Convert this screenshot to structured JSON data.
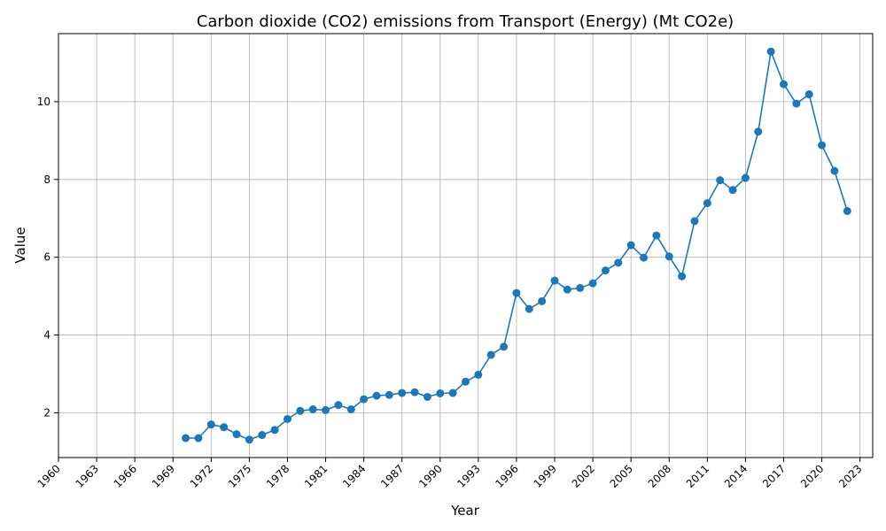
{
  "chart_data": {
    "type": "line",
    "title": "Carbon dioxide (CO2) emissions from Transport (Energy) (Mt CO2e)",
    "xlabel": "Year",
    "ylabel": "Value",
    "xlim": [
      1960,
      2024
    ],
    "ylim": [
      0.85,
      11.75
    ],
    "grid": true,
    "color": "#1f77b4",
    "x_ticks": [
      1960,
      1963,
      1966,
      1969,
      1972,
      1975,
      1978,
      1981,
      1984,
      1987,
      1990,
      1993,
      1996,
      1999,
      2002,
      2005,
      2008,
      2011,
      2014,
      2017,
      2020,
      2023
    ],
    "y_ticks": [
      2,
      4,
      6,
      8,
      10
    ],
    "x": [
      1970,
      1971,
      1972,
      1973,
      1974,
      1975,
      1976,
      1977,
      1978,
      1979,
      1980,
      1981,
      1982,
      1983,
      1984,
      1985,
      1986,
      1987,
      1988,
      1989,
      1990,
      1991,
      1992,
      1993,
      1994,
      1995,
      1996,
      1997,
      1998,
      1999,
      2000,
      2001,
      2002,
      2003,
      2004,
      2005,
      2006,
      2007,
      2008,
      2009,
      2010,
      2011,
      2012,
      2013,
      2014,
      2015,
      2016,
      2017,
      2018,
      2019,
      2020,
      2021,
      2022
    ],
    "y": [
      1.35,
      1.35,
      1.7,
      1.63,
      1.45,
      1.31,
      1.43,
      1.56,
      1.84,
      2.05,
      2.09,
      2.07,
      2.2,
      2.09,
      2.35,
      2.44,
      2.46,
      2.51,
      2.53,
      2.41,
      2.5,
      2.51,
      2.8,
      2.98,
      3.49,
      3.7,
      5.08,
      4.67,
      4.87,
      5.4,
      5.17,
      5.21,
      5.33,
      5.66,
      5.86,
      6.31,
      5.99,
      6.56,
      6.02,
      5.51,
      6.93,
      7.39,
      7.98,
      7.73,
      8.04,
      9.23,
      11.29,
      10.45,
      9.95,
      10.19,
      8.88,
      8.22,
      7.19
    ]
  }
}
